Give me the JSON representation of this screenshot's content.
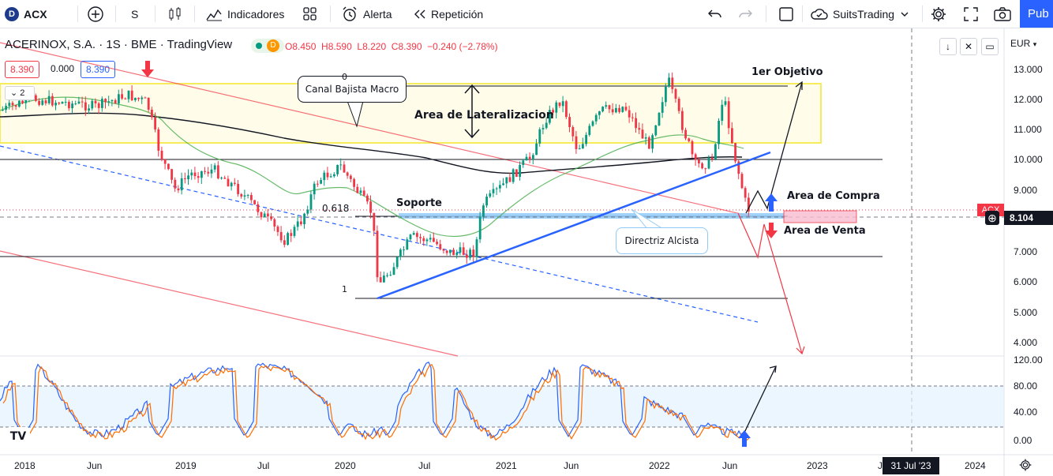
{
  "topbar": {
    "symbol": "ACX",
    "interval": "S",
    "indicators_label": "Indicadores",
    "alert_label": "Alerta",
    "replay_label": "Repetición",
    "layout_name": "SuitsTrading",
    "publish_label": "Pub"
  },
  "legend": {
    "title": "ACERINOX, S.A. · 1S · BME · TradingView",
    "badge": "D",
    "open": "O8.450",
    "high": "H8.590",
    "low": "L8.220",
    "close": "C8.390",
    "change": "−0.240 (−2.78%)",
    "bid": "8.390",
    "spread": "0.000",
    "ask": "8.390",
    "collapse_count": "2"
  },
  "price_axis": {
    "currency": "EUR",
    "labels": [
      "13.000",
      "12.000",
      "11.000",
      "10.000",
      "9.000",
      "8.000",
      "7.000",
      "6.000",
      "5.000",
      "4.000"
    ],
    "last_price": "8.104",
    "symbol_tag": "ACX",
    "osc_labels": [
      "120.00",
      "80.00",
      "40.00",
      "0.00"
    ]
  },
  "time_axis": {
    "labels": [
      "2018",
      "Jun",
      "2019",
      "Jul",
      "2020",
      "Jul",
      "2021",
      "Jun",
      "2022",
      "Jun",
      "2023",
      "J",
      "2024"
    ],
    "cursor_date": "31 Jul '23"
  },
  "annotations": {
    "canal": "Canal Bajista Macro",
    "lateral": "Area de Lateralizacion",
    "objetivo": "1er Objetivo",
    "soporte": "Soporte",
    "fib_0618": "0.618",
    "fib_0": "0",
    "fib_1": "1",
    "compra": "Area de Compra",
    "venta": "Area de Venta",
    "directriz": "Directriz Alcista"
  },
  "colors": {
    "down": "#f23645",
    "up": "#089981",
    "blue": "#2962ff",
    "yellow": "#f5e94a"
  }
}
